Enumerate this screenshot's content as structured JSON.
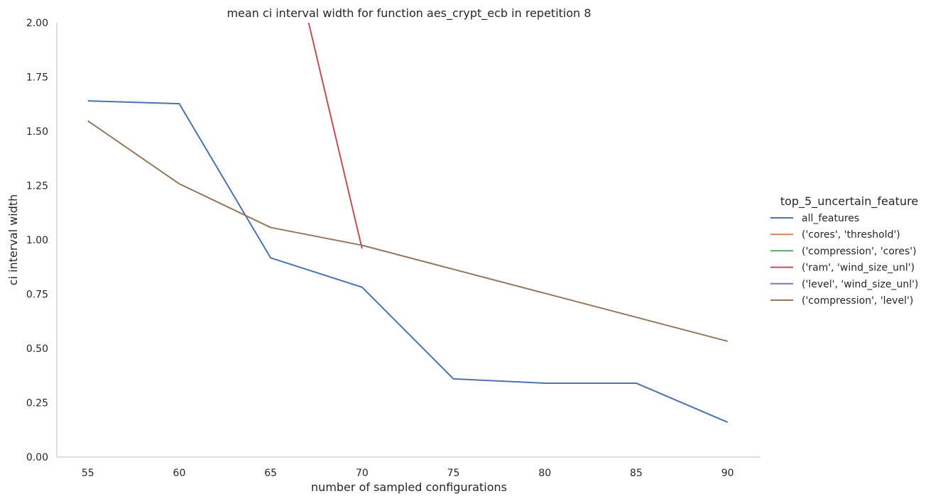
{
  "chart_data": {
    "type": "line",
    "title": "mean ci interval width for function aes_crypt_ecb in repetition 8",
    "xlabel": "number of sampled configurations",
    "ylabel": "ci interval width",
    "xlim": [
      53.3,
      91.8
    ],
    "ylim": [
      0,
      2.0
    ],
    "xticks": [
      55,
      60,
      65,
      70,
      75,
      80,
      85,
      90
    ],
    "yticks": [
      0,
      0.25,
      0.5,
      0.75,
      1.0,
      1.25,
      1.5,
      1.75,
      2.0
    ],
    "ytick_labels": [
      "0.00",
      "0.25",
      "0.50",
      "0.75",
      "1.00",
      "1.25",
      "1.50",
      "1.75",
      "2.00"
    ],
    "grid": false,
    "legend": {
      "title": "top_5_uncertain_feature",
      "placement": "right"
    },
    "series": [
      {
        "name": "all_features",
        "color": "#4c72b0",
        "x": [
          55,
          60,
          65,
          70,
          75,
          80,
          85,
          90
        ],
        "y": [
          1.64,
          1.627,
          0.917,
          0.782,
          0.36,
          0.34,
          0.34,
          0.16
        ]
      },
      {
        "name": "('cores', 'threshold')",
        "color": "#dd8452",
        "x": [],
        "y": []
      },
      {
        "name": "('compression', 'cores')",
        "color": "#55a868",
        "x": [],
        "y": []
      },
      {
        "name": "('ram', 'wind_size_unl')",
        "color": "#c44e52",
        "x": [
          65,
          70
        ],
        "y": [
          2.74,
          0.96
        ]
      },
      {
        "name": "('level', 'wind_size_unl')",
        "color": "#8172b3",
        "x": [],
        "y": []
      },
      {
        "name": "('compression', 'level')",
        "color": "#937860",
        "x": [
          55,
          60,
          65,
          70,
          90
        ],
        "y": [
          1.548,
          1.258,
          1.057,
          0.975,
          0.533
        ]
      }
    ]
  }
}
